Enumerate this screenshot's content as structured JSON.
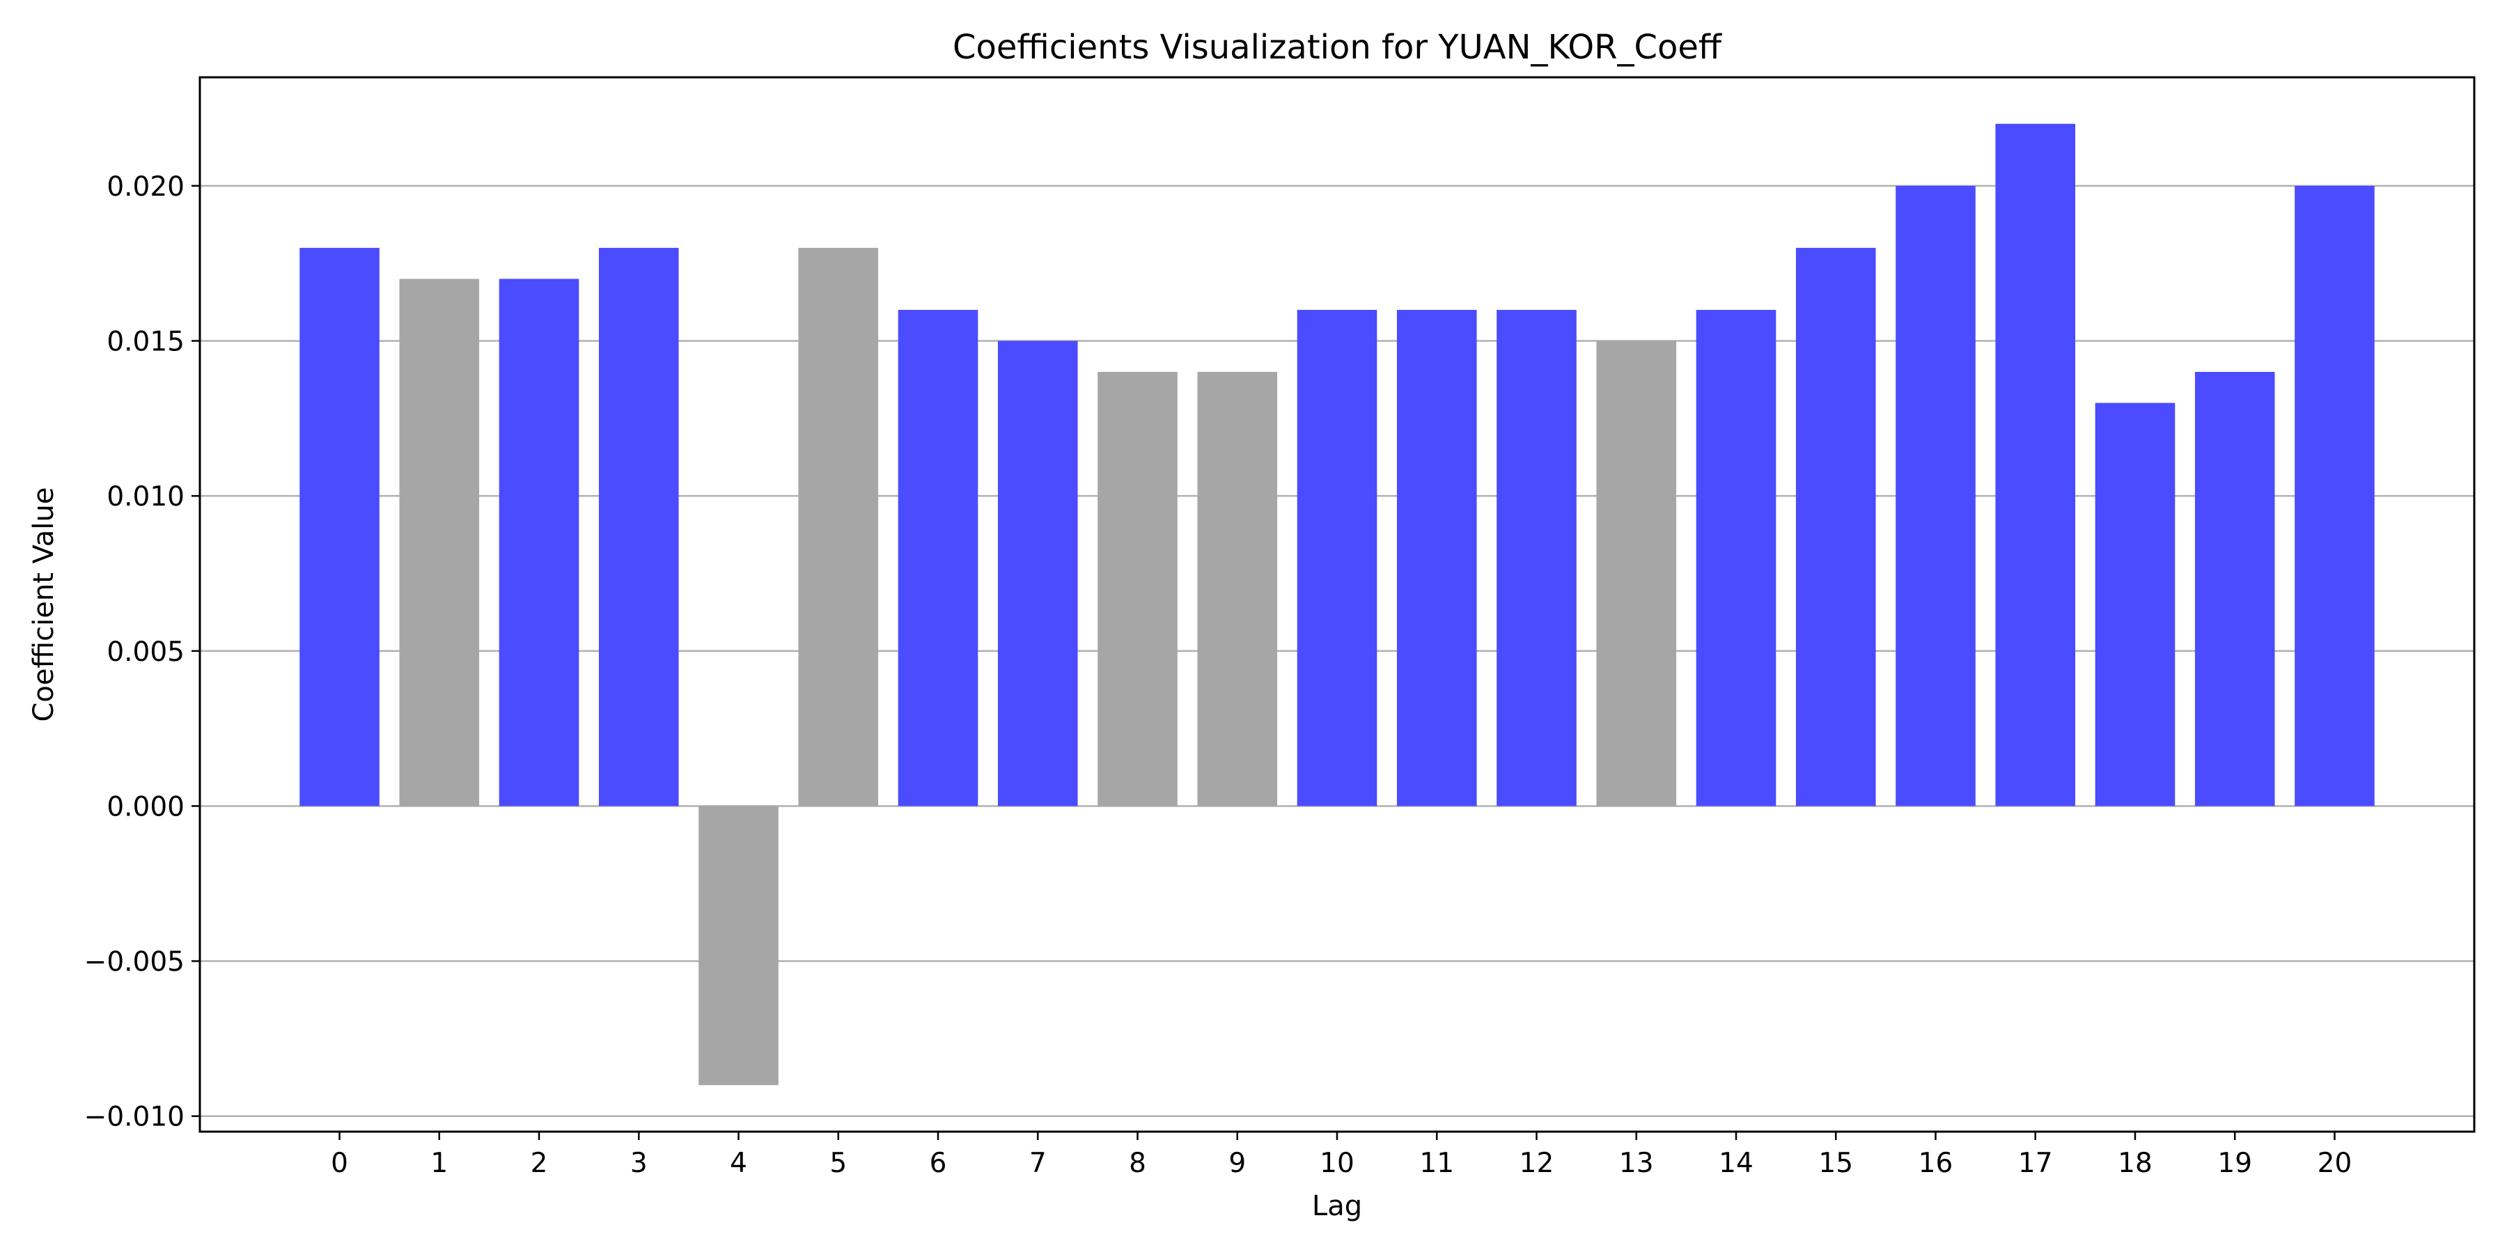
{
  "chart_data": {
    "type": "bar",
    "title": "Coefficients Visualization for YUAN_KOR_Coeff",
    "xlabel": "Lag",
    "ylabel": "Coefficient Value",
    "categories": [
      "0",
      "1",
      "2",
      "3",
      "4",
      "5",
      "6",
      "7",
      "8",
      "9",
      "10",
      "11",
      "12",
      "13",
      "14",
      "15",
      "16",
      "17",
      "18",
      "19",
      "20"
    ],
    "values": [
      0.018,
      0.017,
      0.017,
      0.018,
      -0.009,
      0.018,
      0.016,
      0.015,
      0.014,
      0.014,
      0.016,
      0.016,
      0.016,
      0.015,
      0.016,
      0.018,
      0.02,
      0.022,
      0.013,
      0.014,
      0.02
    ],
    "bar_colors": [
      "blue",
      "gray",
      "blue",
      "blue",
      "gray",
      "gray",
      "blue",
      "blue",
      "gray",
      "gray",
      "blue",
      "blue",
      "blue",
      "gray",
      "blue",
      "blue",
      "blue",
      "blue",
      "blue",
      "blue",
      "blue"
    ],
    "colors": {
      "blue": "#4b4bff",
      "gray": "#a6a6a6",
      "grid": "#b0b0b0"
    },
    "yticks": [
      "−0.010",
      "−0.005",
      "0.000",
      "0.005",
      "0.010",
      "0.015",
      "0.020"
    ],
    "ytick_values": [
      -0.01,
      -0.005,
      0.0,
      0.005,
      0.01,
      0.015,
      0.02
    ],
    "ylim": [
      -0.0105,
      0.0235
    ],
    "xlim": [
      -1.4,
      21.4
    ],
    "grid": "y-axis major"
  }
}
